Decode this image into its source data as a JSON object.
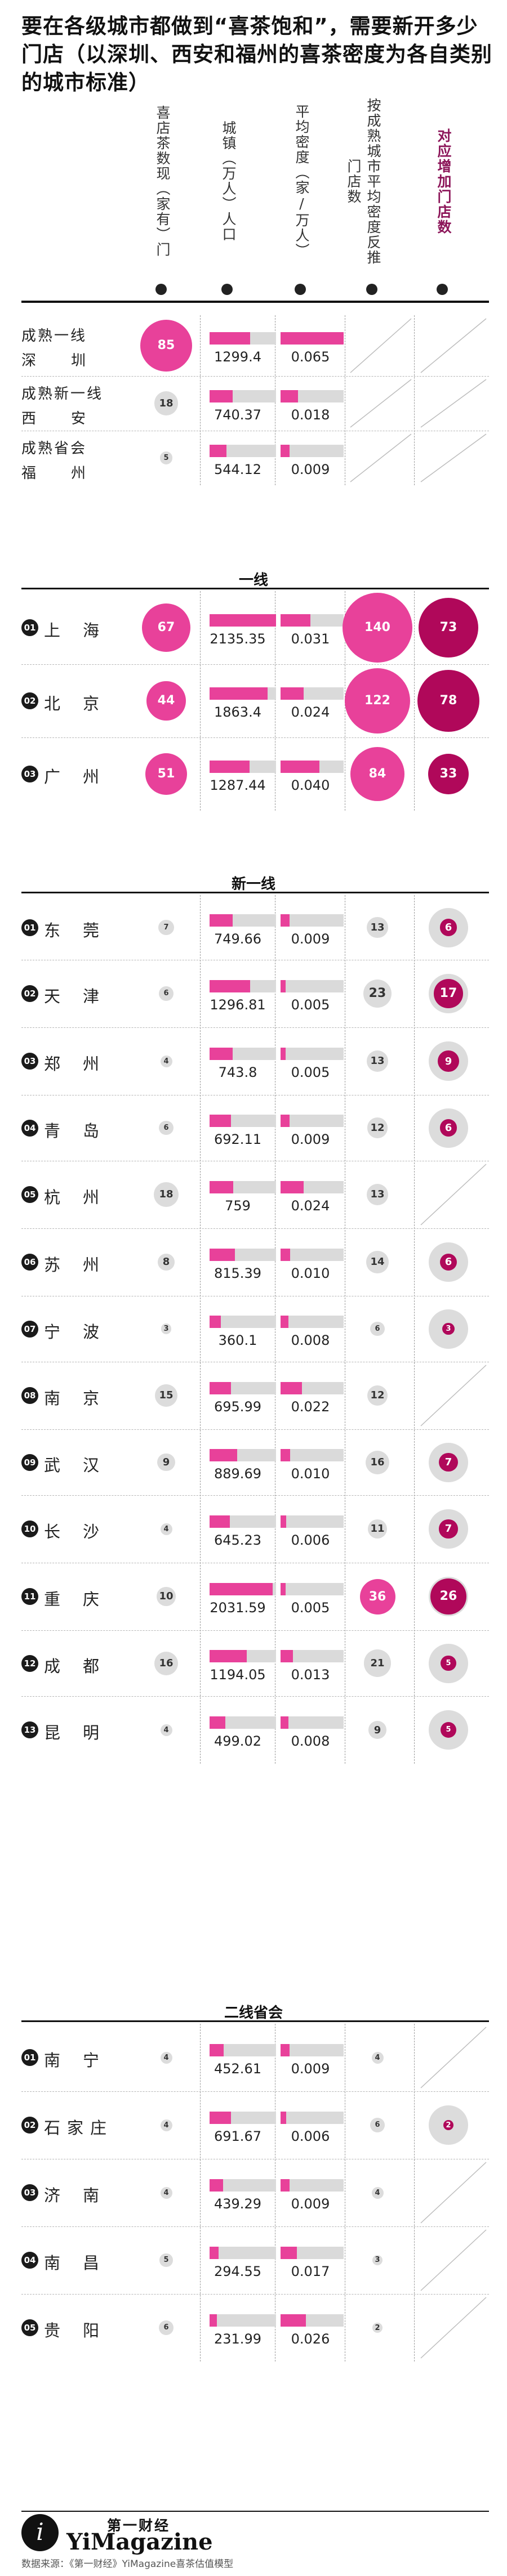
{
  "title": "要在各级城市都做到“喜茶饱和”，需要新开多少门店（以深圳、西安和福州的喜茶密度为各自类别的城市标准）",
  "columns": {
    "stores": "喜店茶数现（家有）门",
    "population": "城镇（万人）人口",
    "density": "平均密度（家/万人）",
    "est_stores": "按成熟城市平均密度反推门店数",
    "new_stores": "对应增加门店数"
  },
  "colors": {
    "accent": "#e8419a",
    "dark_accent": "#b0085a",
    "gray": "#dadada",
    "label_accent": "#8c1559"
  },
  "chart_data": {
    "type": "table",
    "groups": [
      {
        "section": "",
        "rows": [
          {
            "label": "成熟一线",
            "city": "深圳",
            "stores": 85,
            "population": 1299.4,
            "density": 0.065
          },
          {
            "label": "成熟新一线",
            "city": "西安",
            "stores": 18,
            "population": 740.37,
            "density": 0.018
          },
          {
            "label": "成熟省会",
            "city": "福州",
            "stores": 5,
            "population": 544.12,
            "density": 0.009
          }
        ]
      },
      {
        "section": "一线",
        "rows": [
          {
            "rank": "01",
            "city": "上海",
            "stores": 67,
            "population": 2135.35,
            "density": 0.031,
            "est_stores": 140,
            "new_stores": 73
          },
          {
            "rank": "02",
            "city": "北京",
            "stores": 44,
            "population": 1863.4,
            "density": 0.024,
            "est_stores": 122,
            "new_stores": 78
          },
          {
            "rank": "03",
            "city": "广州",
            "stores": 51,
            "population": 1287.44,
            "density": 0.04,
            "est_stores": 84,
            "new_stores": 33
          }
        ]
      },
      {
        "section": "新一线",
        "rows": [
          {
            "rank": "01",
            "city": "东莞",
            "stores": 7,
            "population": 749.66,
            "density": 0.009,
            "est_stores": 13,
            "new_stores": 6
          },
          {
            "rank": "02",
            "city": "天津",
            "stores": 6,
            "population": 1296.81,
            "density": 0.005,
            "est_stores": 23,
            "new_stores": 17
          },
          {
            "rank": "03",
            "city": "郑州",
            "stores": 4,
            "population": 743.8,
            "density": 0.005,
            "est_stores": 13,
            "new_stores": 9
          },
          {
            "rank": "04",
            "city": "青岛",
            "stores": 6,
            "population": 692.11,
            "density": 0.009,
            "est_stores": 12,
            "new_stores": 6
          },
          {
            "rank": "05",
            "city": "杭州",
            "stores": 18,
            "population": 759,
            "density": 0.024,
            "est_stores": 13,
            "new_stores": null
          },
          {
            "rank": "06",
            "city": "苏州",
            "stores": 8,
            "population": 815.39,
            "density": 0.01,
            "est_stores": 14,
            "new_stores": 6
          },
          {
            "rank": "07",
            "city": "宁波",
            "stores": 3,
            "population": 360.1,
            "density": 0.008,
            "est_stores": 6,
            "new_stores": 3
          },
          {
            "rank": "08",
            "city": "南京",
            "stores": 15,
            "population": 695.99,
            "density": 0.022,
            "est_stores": 12,
            "new_stores": null
          },
          {
            "rank": "09",
            "city": "武汉",
            "stores": 9,
            "population": 889.69,
            "density": 0.01,
            "est_stores": 16,
            "new_stores": 7
          },
          {
            "rank": "10",
            "city": "长沙",
            "stores": 4,
            "population": 645.23,
            "density": 0.006,
            "est_stores": 11,
            "new_stores": 7
          },
          {
            "rank": "11",
            "city": "重庆",
            "stores": 10,
            "population": 2031.59,
            "density": 0.005,
            "est_stores": 36,
            "new_stores": 26
          },
          {
            "rank": "12",
            "city": "成都",
            "stores": 16,
            "population": 1194.05,
            "density": 0.013,
            "est_stores": 21,
            "new_stores": 5
          },
          {
            "rank": "13",
            "city": "昆明",
            "stores": 4,
            "population": 499.02,
            "density": 0.008,
            "est_stores": 9,
            "new_stores": 5
          }
        ]
      },
      {
        "section": "二线省会",
        "rows": [
          {
            "rank": "01",
            "city": "南宁",
            "stores": 4,
            "population": 452.61,
            "density": 0.009,
            "est_stores": 4,
            "new_stores": null
          },
          {
            "rank": "02",
            "city": "石家庄",
            "stores": 4,
            "population": 691.67,
            "density": 0.006,
            "est_stores": 6,
            "new_stores": 2
          },
          {
            "rank": "03",
            "city": "济南",
            "stores": 4,
            "population": 439.29,
            "density": 0.009,
            "est_stores": 4,
            "new_stores": null
          },
          {
            "rank": "04",
            "city": "南昌",
            "stores": 5,
            "population": 294.55,
            "density": 0.017,
            "est_stores": 3,
            "new_stores": null
          },
          {
            "rank": "05",
            "city": "贵阳",
            "stores": 6,
            "population": 231.99,
            "density": 0.026,
            "est_stores": 2,
            "new_stores": null
          }
        ]
      }
    ]
  },
  "footer": {
    "logo_letter": "i",
    "brand_cn": "第一财经",
    "brand_en": "YiMagazine",
    "source": "数据来源：《第一财经》YiMagazine喜茶估值模型"
  }
}
